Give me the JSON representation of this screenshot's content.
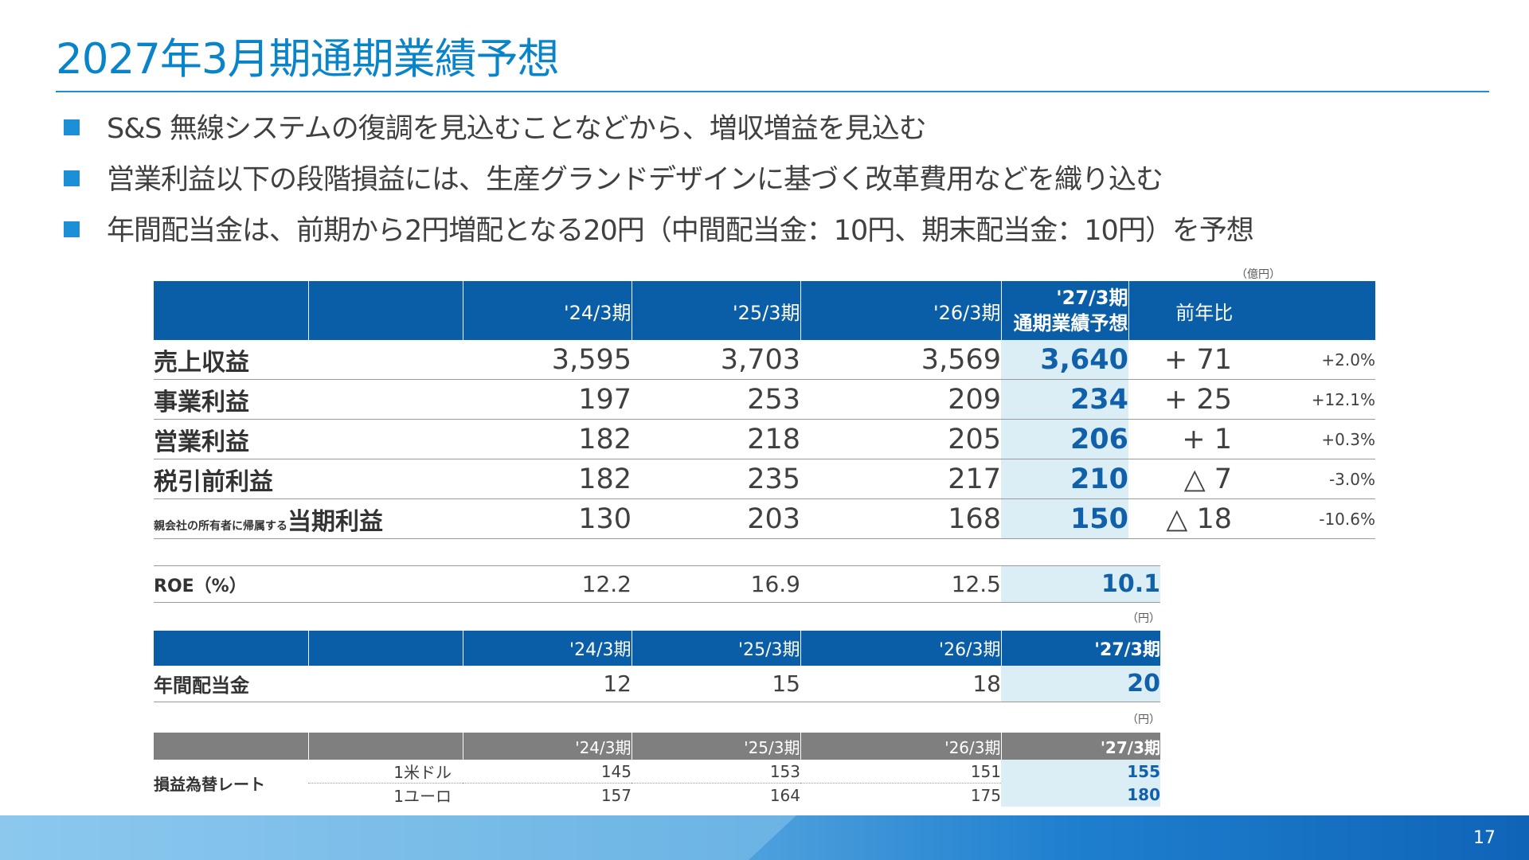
{
  "title": "2027年3月期通期業績予想",
  "bullets": [
    "S&S 無線システムの復調を見込むことなどから、増収増益を見込む",
    "営業利益以下の段階損益には、生産グランドデザインに基づく改革費用などを織り込む",
    "年間配当金は、前期から2円増配となる20円（中間配当金：10円、期末配当金：10円）を予想"
  ],
  "units": {
    "oku_yen": "（億円）",
    "yen": "（円）"
  },
  "main_table": {
    "columns": [
      "'24/3期",
      "'25/3期",
      "'26/3期"
    ],
    "forecast_header": [
      "'27/3期",
      "通期業績予想"
    ],
    "yoy_header": "前年比",
    "rows": [
      {
        "label": "売上収益",
        "v1": "3,595",
        "v2": "3,703",
        "v3": "3,569",
        "fc": "3,640",
        "diff": "+ 71",
        "pct": "+2.0%"
      },
      {
        "label": "事業利益",
        "v1": "197",
        "v2": "253",
        "v3": "209",
        "fc": "234",
        "diff": "+ 25",
        "pct": "+12.1%"
      },
      {
        "label": "営業利益",
        "v1": "182",
        "v2": "218",
        "v3": "205",
        "fc": "206",
        "diff": "+ 1",
        "pct": "+0.3%"
      },
      {
        "label": "税引前利益",
        "v1": "182",
        "v2": "235",
        "v3": "217",
        "fc": "210",
        "diff": "△ 7",
        "pct": "-3.0%"
      },
      {
        "label_prefix": "親会社の所有者に帰属する",
        "label": "当期利益",
        "v1": "130",
        "v2": "203",
        "v3": "168",
        "fc": "150",
        "diff": "△ 18",
        "pct": "-10.6%"
      }
    ]
  },
  "roe": {
    "label": "ROE（%）",
    "v1": "12.2",
    "v2": "16.9",
    "v3": "12.5",
    "fc": "10.1"
  },
  "dividend_table": {
    "columns": [
      "'24/3期",
      "'25/3期",
      "'26/3期",
      "'27/3期"
    ],
    "label": "年間配当金",
    "values": [
      "12",
      "15",
      "18",
      "20"
    ]
  },
  "fx_table": {
    "columns": [
      "'24/3期",
      "'25/3期",
      "'26/3期",
      "'27/3期"
    ],
    "label": "損益為替レート",
    "rows": [
      {
        "currency": "1米ドル",
        "values": [
          "145",
          "153",
          "151",
          "155"
        ]
      },
      {
        "currency": "1ユーロ",
        "values": [
          "157",
          "164",
          "175",
          "180"
        ]
      }
    ]
  },
  "page_number": "17",
  "colors": {
    "title": "#0a84c9",
    "header": "#0a5ea8",
    "forecast_bg": "#dbeef6",
    "forecast_text": "#1060aa",
    "fx_header": "#7f7f7f"
  }
}
